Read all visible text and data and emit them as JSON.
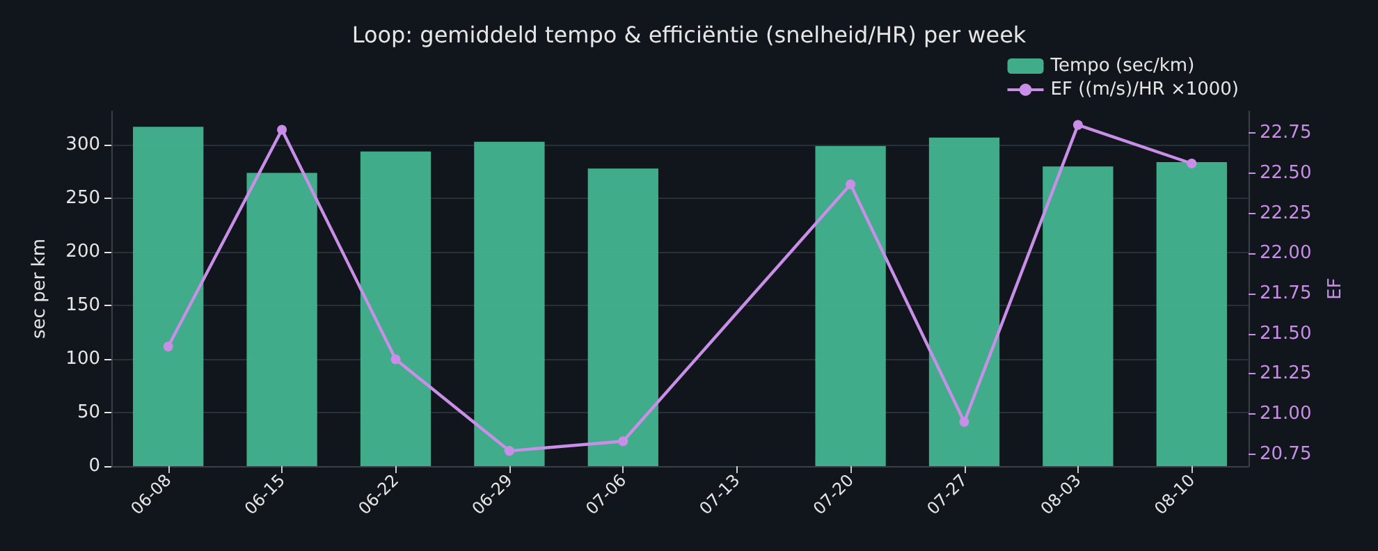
{
  "chart_data": {
    "type": "bar",
    "title": "Loop: gemiddeld tempo & efficiëntie (snelheid/HR) per week",
    "ylabel": "sec per km",
    "y2label": "EF",
    "categories": [
      "06-08",
      "06-15",
      "06-22",
      "06-29",
      "07-06",
      "07-13",
      "07-20",
      "07-27",
      "08-03",
      "08-10"
    ],
    "series": [
      {
        "name": "Tempo (sec/km)",
        "color": "#43b48f",
        "values": [
          317,
          274,
          294,
          303,
          278,
          null,
          299,
          307,
          280,
          284
        ]
      },
      {
        "name": "EF ((m/s)/HR ×1000)",
        "type": "line",
        "axis": "y2",
        "color": "#c98fe8",
        "marker": "circle",
        "values": [
          21.42,
          22.77,
          21.34,
          20.77,
          20.83,
          null,
          22.43,
          20.95,
          22.8,
          22.56
        ]
      }
    ],
    "ylim": [
      0,
      331.5
    ],
    "yticks": [
      0,
      50,
      100,
      150,
      200,
      250,
      300
    ],
    "y2lim": [
      20.675,
      22.885
    ],
    "y2ticks": [
      20.75,
      {
        "value": 21,
        "label": "21.00"
      },
      21.25,
      {
        "value": 21.5,
        "label": "21.50"
      },
      21.75,
      {
        "value": 22,
        "label": "22.00"
      },
      22.25,
      {
        "value": 22.5,
        "label": "22.50"
      },
      22.75
    ],
    "grid": "y",
    "legend": "top right"
  }
}
